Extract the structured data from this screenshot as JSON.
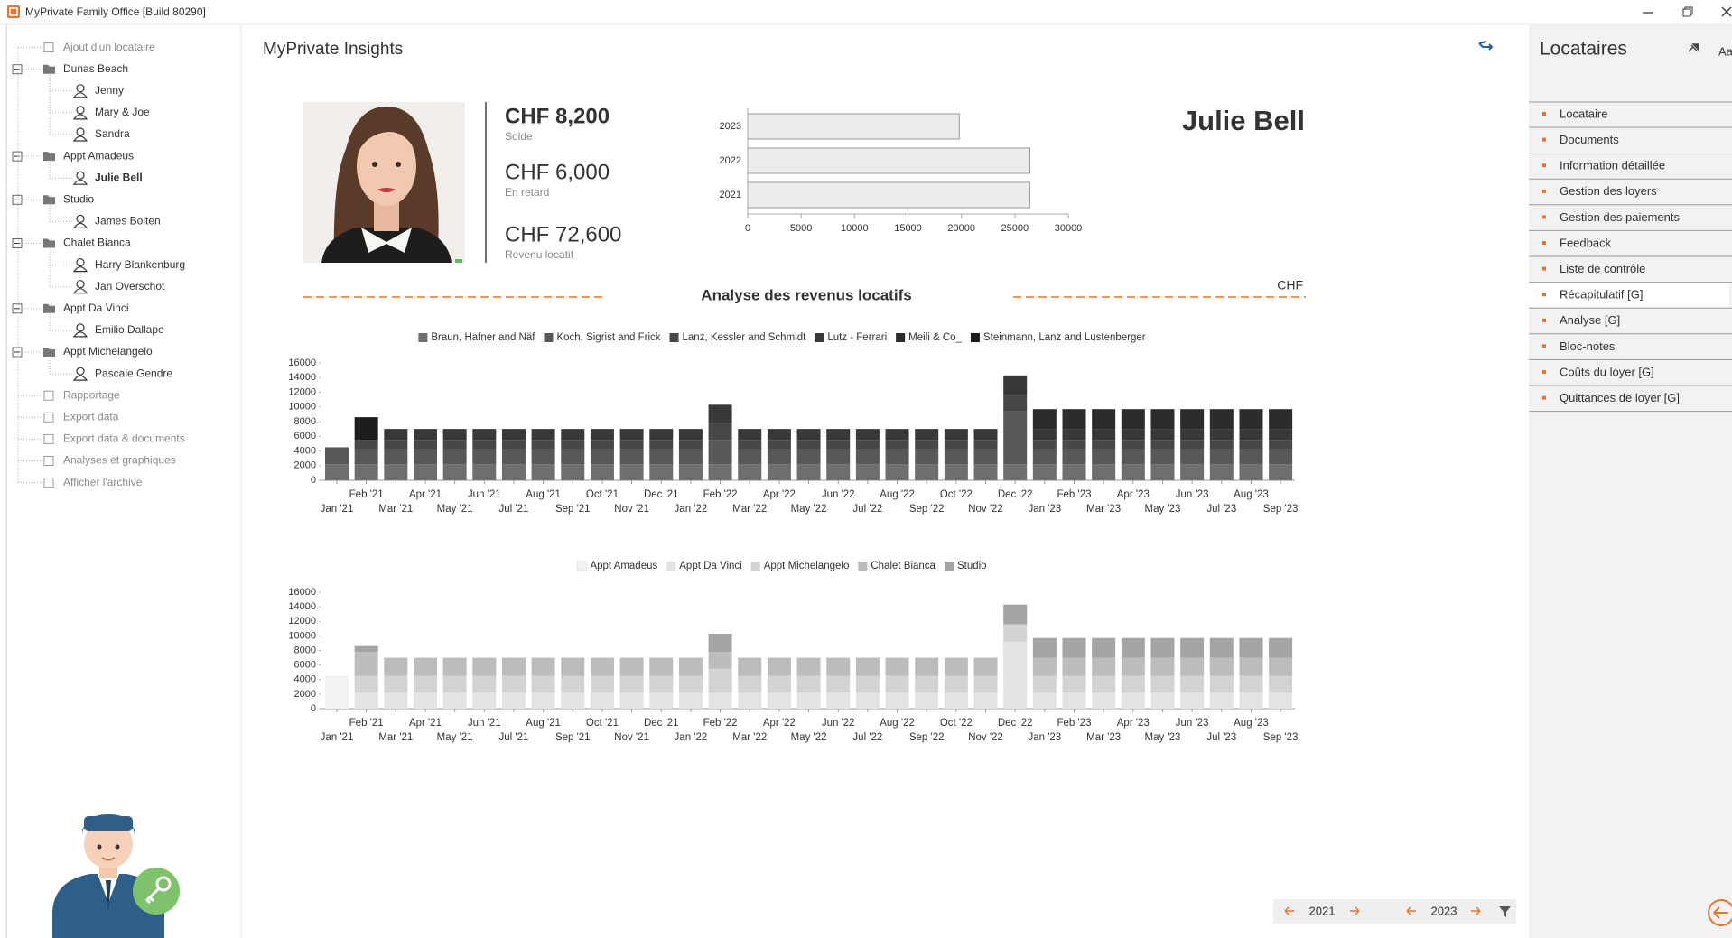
{
  "window": {
    "title": "MyPrivate Family Office [Build 80290]"
  },
  "tree": {
    "actions_top": [
      "Ajout d'un locataire"
    ],
    "groups": [
      {
        "label": "Dunas Beach",
        "tenants": [
          {
            "name": "Jenny"
          },
          {
            "name": "Mary & Joe"
          },
          {
            "name": "Sandra"
          }
        ]
      },
      {
        "label": "Appt Amadeus",
        "tenants": [
          {
            "name": "Julie Bell",
            "selected": true
          }
        ]
      },
      {
        "label": "Studio",
        "tenants": [
          {
            "name": "James Bolten"
          }
        ]
      },
      {
        "label": "Chalet Bianca",
        "tenants": [
          {
            "name": "Harry Blankenburg"
          },
          {
            "name": "Jan Overschot"
          }
        ]
      },
      {
        "label": "Appt Da Vinci",
        "tenants": [
          {
            "name": "Emilio Dallape"
          }
        ]
      },
      {
        "label": "Appt Michelangelo",
        "tenants": [
          {
            "name": "Pascale Gendre"
          }
        ]
      }
    ],
    "actions_bottom": [
      "Rapportage",
      "Export data",
      "Export data & documents",
      "Analyses et graphiques",
      "Afficher l'archive"
    ]
  },
  "header": {
    "title": "MyPrivate Insights"
  },
  "tenant": {
    "name": "Julie Bell",
    "figures": [
      {
        "amount": "CHF 8,200",
        "label": "Solde",
        "highlight": true
      },
      {
        "amount": "CHF 6,000",
        "label": "En retard"
      },
      {
        "amount": "CHF 72,600",
        "label": "Revenu locatif"
      }
    ]
  },
  "section": {
    "title": "Analyse des revenus locatifs",
    "unit": "CHF"
  },
  "chart_data": [
    {
      "type": "hbar",
      "categories": [
        "2023",
        "2022",
        "2021"
      ],
      "values": [
        19800,
        26400,
        26400
      ],
      "color": "#ececec",
      "xlim": [
        0,
        30000
      ],
      "xticks": [
        0,
        5000,
        10000,
        15000,
        20000,
        25000,
        30000
      ]
    },
    {
      "type": "stacked_bar",
      "categories": [
        "Jan '21",
        "Feb '21",
        "Mar '21",
        "Apr '21",
        "May '21",
        "Jun '21",
        "Jul '21",
        "Aug '21",
        "Sep '21",
        "Oct '21",
        "Nov '21",
        "Dec '21",
        "Jan '22",
        "Feb '22",
        "Mar '22",
        "Apr '22",
        "May '22",
        "Jun '22",
        "Jul '22",
        "Aug '22",
        "Sep '22",
        "Oct '22",
        "Nov '22",
        "Dec '22",
        "Jan '23",
        "Feb '23",
        "Mar '23",
        "Apr '23",
        "May '23",
        "Jun '23",
        "Jul '23",
        "Aug '23",
        "Sep '23"
      ],
      "ylim": [
        0,
        16000
      ],
      "yticks": [
        0,
        2000,
        4000,
        6000,
        8000,
        10000,
        12000,
        14000,
        16000
      ],
      "series": [
        {
          "name": "Braun, Hafner and Näf",
          "color": "#6e6e6e",
          "values": [
            2200,
            2200,
            2200,
            2200,
            2200,
            2200,
            2200,
            2200,
            2200,
            2200,
            2200,
            2200,
            2200,
            2200,
            2200,
            2200,
            2200,
            2200,
            2200,
            2200,
            2200,
            2200,
            2200,
            2200,
            2200,
            2200,
            2200,
            2200,
            2200,
            2200,
            2200,
            2200,
            2200
          ]
        },
        {
          "name": "Koch, Sigrist and Frick",
          "color": "#585858",
          "values": [
            2300,
            2000,
            2000,
            2000,
            2000,
            2000,
            2000,
            2000,
            2000,
            2000,
            2000,
            2000,
            2000,
            3300,
            2000,
            2000,
            2000,
            2000,
            2000,
            2000,
            2000,
            2000,
            2000,
            7200,
            2000,
            2000,
            2000,
            2000,
            2000,
            2000,
            2000,
            2000,
            2000
          ]
        },
        {
          "name": "Lanz, Kessler and Schmidt",
          "color": "#474747",
          "values": [
            0,
            1300,
            1300,
            1300,
            1300,
            1300,
            1300,
            1300,
            1300,
            1300,
            1300,
            1300,
            1300,
            2300,
            1300,
            1300,
            1300,
            1300,
            1300,
            1300,
            1300,
            1300,
            1300,
            2200,
            1300,
            1300,
            1300,
            1300,
            1300,
            1300,
            1300,
            1300,
            1300
          ]
        },
        {
          "name": "Lutz - Ferrari",
          "color": "#383838",
          "values": [
            0,
            0,
            1500,
            1500,
            1500,
            1500,
            1500,
            1500,
            1500,
            1500,
            1500,
            1500,
            1500,
            2500,
            1500,
            1500,
            1500,
            1500,
            1500,
            1500,
            1500,
            1500,
            1500,
            2700,
            1500,
            1500,
            1500,
            1500,
            1500,
            1500,
            1500,
            1500,
            1500
          ]
        },
        {
          "name": "Meili & Co_",
          "color": "#2c2c2c",
          "values": [
            0,
            0,
            0,
            0,
            0,
            0,
            0,
            0,
            0,
            0,
            0,
            0,
            0,
            0,
            0,
            0,
            0,
            0,
            0,
            0,
            0,
            0,
            0,
            0,
            2700,
            2700,
            2700,
            2700,
            2700,
            2700,
            2700,
            2700,
            2700
          ]
        },
        {
          "name": "Steinmann, Lanz and Lustenberger",
          "color": "#1c1c1c",
          "values": [
            0,
            3100,
            0,
            0,
            0,
            0,
            0,
            0,
            0,
            0,
            0,
            0,
            0,
            0,
            0,
            0,
            0,
            0,
            0,
            0,
            0,
            0,
            0,
            0,
            0,
            0,
            0,
            0,
            0,
            0,
            0,
            0,
            0
          ]
        }
      ]
    },
    {
      "type": "stacked_bar",
      "categories": [
        "Jan '21",
        "Feb '21",
        "Mar '21",
        "Apr '21",
        "May '21",
        "Jun '21",
        "Jul '21",
        "Aug '21",
        "Sep '21",
        "Oct '21",
        "Nov '21",
        "Dec '21",
        "Jan '22",
        "Feb '22",
        "Mar '22",
        "Apr '22",
        "May '22",
        "Jun '22",
        "Jul '22",
        "Aug '22",
        "Sep '22",
        "Oct '22",
        "Nov '22",
        "Dec '22",
        "Jan '23",
        "Feb '23",
        "Mar '23",
        "Apr '23",
        "May '23",
        "Jun '23",
        "Jul '23",
        "Aug '23",
        "Sep '23"
      ],
      "ylim": [
        0,
        16000
      ],
      "yticks": [
        0,
        2000,
        4000,
        6000,
        8000,
        10000,
        12000,
        14000,
        16000
      ],
      "series": [
        {
          "name": "Appt Amadeus",
          "color": "#f2f2f2",
          "values": [
            4500,
            0,
            0,
            0,
            0,
            0,
            0,
            0,
            0,
            0,
            0,
            0,
            0,
            0,
            0,
            0,
            0,
            0,
            0,
            0,
            0,
            0,
            0,
            0,
            0,
            0,
            0,
            0,
            0,
            0,
            0,
            0,
            0
          ]
        },
        {
          "name": "Appt Da Vinci",
          "color": "#e3e3e3",
          "values": [
            0,
            2200,
            2200,
            2200,
            2200,
            2200,
            2200,
            2200,
            2200,
            2200,
            2200,
            2200,
            2200,
            2200,
            2200,
            2200,
            2200,
            2200,
            2200,
            2200,
            2200,
            2200,
            2200,
            9200,
            2200,
            2200,
            2200,
            2200,
            2200,
            2200,
            2200,
            2200,
            2200
          ]
        },
        {
          "name": "Appt Michelangelo",
          "color": "#d3d3d3",
          "values": [
            0,
            2300,
            2300,
            2300,
            2300,
            2300,
            2300,
            2300,
            2300,
            2300,
            2300,
            2300,
            2300,
            3300,
            2300,
            2300,
            2300,
            2300,
            2300,
            2300,
            2300,
            2300,
            2300,
            2400,
            2300,
            2300,
            2300,
            2300,
            2300,
            2300,
            2300,
            2300,
            2300
          ]
        },
        {
          "name": "Chalet Bianca",
          "color": "#bcbcbc",
          "values": [
            0,
            3300,
            2500,
            2500,
            2500,
            2500,
            2500,
            2500,
            2500,
            2500,
            2500,
            2500,
            2500,
            2300,
            2500,
            2500,
            2500,
            2500,
            2500,
            2500,
            2500,
            2500,
            2500,
            0,
            2500,
            2500,
            2500,
            2500,
            2500,
            2500,
            2500,
            2500,
            2500
          ]
        },
        {
          "name": "Studio",
          "color": "#a4a4a4",
          "values": [
            0,
            800,
            0,
            0,
            0,
            0,
            0,
            0,
            0,
            0,
            0,
            0,
            0,
            2500,
            0,
            0,
            0,
            0,
            0,
            0,
            0,
            0,
            0,
            2700,
            2700,
            2700,
            2700,
            2700,
            2700,
            2700,
            2700,
            2700,
            2700
          ]
        }
      ]
    }
  ],
  "menu": {
    "title": "Locataires",
    "font_button": "Aa",
    "items": [
      {
        "label": "Locataire"
      },
      {
        "label": "Documents"
      },
      {
        "label": "Information détaillée"
      },
      {
        "label": "Gestion des loyers"
      },
      {
        "label": "Gestion des paiements"
      },
      {
        "label": "Feedback"
      },
      {
        "label": "Liste de contrôle"
      },
      {
        "label": "Récapitulatif [G]",
        "active": true
      },
      {
        "label": "Analyse [G]"
      },
      {
        "label": "Bloc-notes"
      },
      {
        "label": "Coûts du loyer [G]"
      },
      {
        "label": "Quittances de loyer [G]"
      }
    ]
  },
  "period": {
    "from": "2021",
    "to": "2023"
  }
}
